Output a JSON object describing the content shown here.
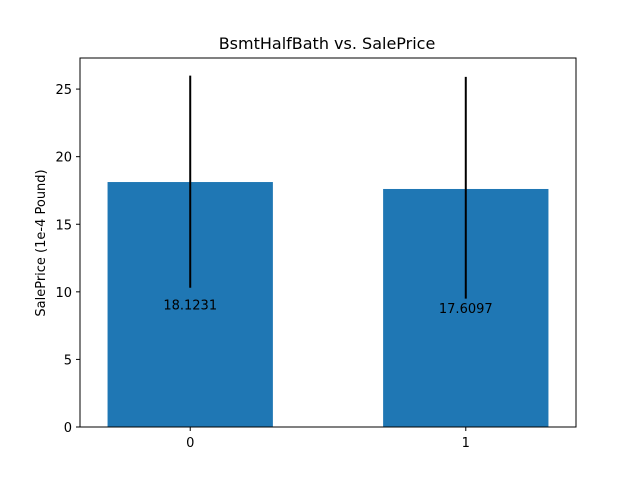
{
  "chart_data": {
    "type": "bar",
    "title": "BsmtHalfBath vs. SalePrice",
    "xlabel": "",
    "ylabel": "SalePrice (1e-4 Pound)",
    "categories": [
      "0",
      "1"
    ],
    "values": [
      18.1231,
      17.6097
    ],
    "value_labels": [
      "18.1231",
      "17.6097"
    ],
    "error_bars": [
      {
        "low": 10.3,
        "high": 26.0
      },
      {
        "low": 9.5,
        "high": 25.9
      }
    ],
    "ylim": [
      0,
      27.3
    ],
    "yticks": [
      "0",
      "5",
      "10",
      "15",
      "20",
      "25"
    ],
    "ytick_values": [
      0,
      5,
      10,
      15,
      20,
      25
    ],
    "grid": false,
    "legend": "none",
    "bar_color": "#1f77b4",
    "error_color": "#000000"
  }
}
